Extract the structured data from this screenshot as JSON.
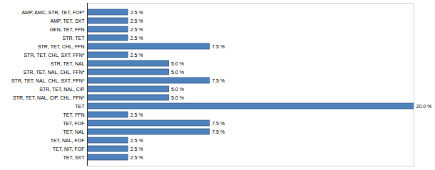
{
  "chart_data": {
    "type": "bar",
    "orientation": "horizontal",
    "categories": [
      "AMP, AMC, STR, TET, FOF*",
      "AMP, TET, SXT",
      "GEN, TET, FFN",
      "STR, TET",
      "STR, TET, CHL, FFN",
      "STR, TET, CHL, SXT, FFN*",
      "STR, TET, NAL",
      "STR, TET, NAL, CHL, FFN*",
      "STR, TET, NAL, CHL, SXT, FFN*",
      "STR, TET, NAL, CIP",
      "STR, TET, NAL, CIP, CHL, FFN*",
      "TET",
      "TET, FFN",
      "TET, FOF",
      "TET, NAL",
      "TET, NAL, FOF",
      "TET, NIT, FOF",
      "TET, SXT"
    ],
    "values": [
      2.5,
      2.5,
      2.5,
      2.5,
      7.5,
      2.5,
      5.0,
      5.0,
      7.5,
      5.0,
      5.0,
      20.0,
      2.5,
      7.5,
      7.5,
      2.5,
      2.5,
      2.5
    ],
    "value_labels": [
      "2.5 %",
      "2.5 %",
      "2.5 %",
      "2.5 %",
      "7.5 %",
      "2.5 %",
      "5.0 %",
      "5.0 %",
      "7.5 %",
      "5.0 %",
      "5.0 %",
      "20.0 %",
      "2.5 %",
      "7.5 %",
      "7.5 %",
      "2.5 %",
      "2.5 %",
      "2.5 %"
    ],
    "color": "#4f81bd",
    "xlim": [
      0,
      20
    ],
    "data_labels": true,
    "tick_labels": "y"
  }
}
